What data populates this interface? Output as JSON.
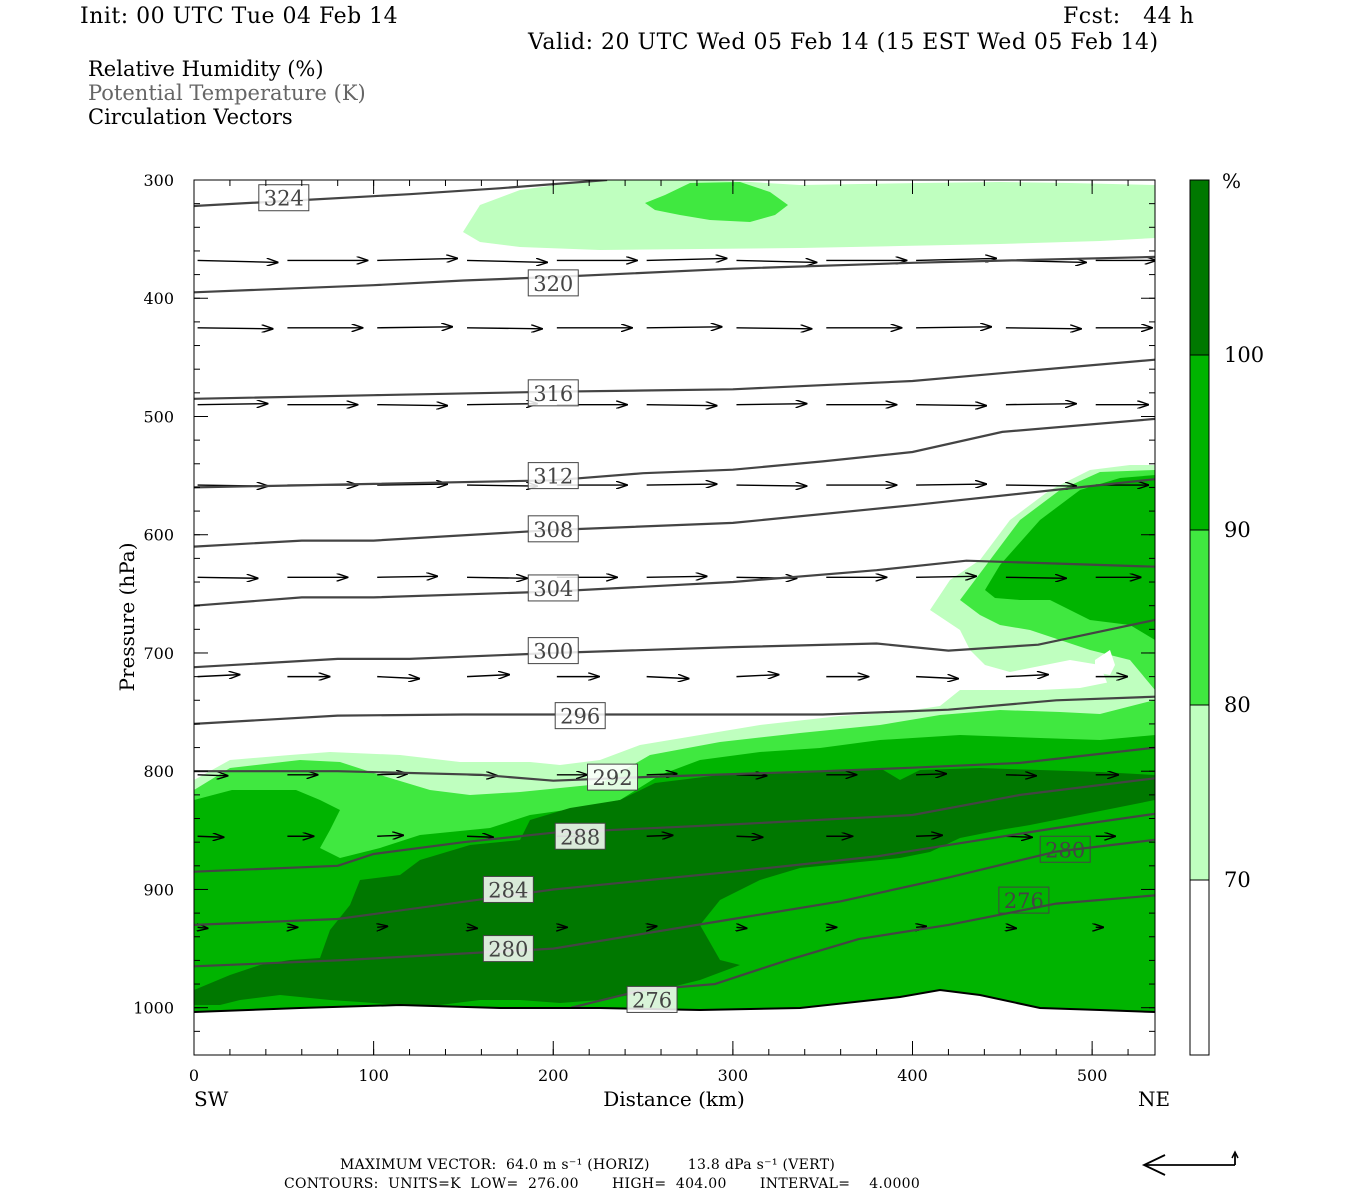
{
  "header": {
    "init": "Init: 00 UTC Tue 04 Feb 14",
    "fcst": "Fcst:   44 h",
    "valid": "Valid: 20 UTC Wed 05 Feb 14 (15 EST Wed 05 Feb 14)"
  },
  "legend_text": {
    "line1": "Relative Humidity (%)",
    "line2": "Potential Temperature (K)",
    "line3": "Circulation Vectors"
  },
  "footer": {
    "line1": "MAXIMUM VECTOR:  64.0 m s⁻¹ (HORIZ)        13.8 dPa s⁻¹ (VERT)",
    "line2": "CONTOURS:  UNITS=K  LOW=  276.00       HIGH=  404.00       INTERVAL=    4.0000"
  },
  "chart_data": {
    "type": "cross-section",
    "xlabel": "Distance (km)",
    "ylabel": "Pressure (hPa)",
    "x_left_label": "SW",
    "x_right_label": "NE",
    "xlim": [
      0,
      535
    ],
    "ylim": [
      1040,
      300
    ],
    "x_ticks": [
      0,
      100,
      200,
      300,
      400,
      500
    ],
    "y_ticks": [
      300,
      400,
      500,
      600,
      700,
      800,
      900,
      1000
    ],
    "colorbar": {
      "unit": "%",
      "levels": [
        70,
        80,
        90,
        100
      ],
      "colors": [
        "#ffffff",
        "#bfffbf",
        "#40e840",
        "#00b400",
        "#007800"
      ]
    },
    "theta_contours": [
      {
        "level": 324,
        "points": [
          [
            0,
            322
          ],
          [
            60,
            317
          ],
          [
            120,
            312
          ],
          [
            170,
            307
          ],
          [
            230,
            300
          ]
        ]
      },
      {
        "level": 320,
        "points": [
          [
            0,
            395
          ],
          [
            100,
            389
          ],
          [
            150,
            385
          ],
          [
            200,
            382
          ],
          [
            300,
            375
          ],
          [
            400,
            370
          ],
          [
            535,
            365
          ]
        ]
      },
      {
        "level": 316,
        "points": [
          [
            0,
            485
          ],
          [
            100,
            482
          ],
          [
            200,
            479
          ],
          [
            250,
            478
          ],
          [
            300,
            477
          ],
          [
            400,
            470
          ],
          [
            535,
            452
          ]
        ]
      },
      {
        "level": 312,
        "points": [
          [
            0,
            560
          ],
          [
            100,
            557
          ],
          [
            200,
            554
          ],
          [
            250,
            548
          ],
          [
            300,
            545
          ],
          [
            350,
            538
          ],
          [
            400,
            530
          ],
          [
            450,
            513
          ],
          [
            535,
            502
          ]
        ]
      },
      {
        "level": 308,
        "points": [
          [
            0,
            610
          ],
          [
            60,
            605
          ],
          [
            100,
            605
          ],
          [
            200,
            596
          ],
          [
            300,
            590
          ],
          [
            400,
            575
          ],
          [
            535,
            553
          ]
        ]
      },
      {
        "level": 304,
        "points": [
          [
            0,
            660
          ],
          [
            60,
            653
          ],
          [
            100,
            653
          ],
          [
            200,
            648
          ],
          [
            300,
            640
          ],
          [
            380,
            630
          ],
          [
            430,
            622
          ],
          [
            535,
            627
          ]
        ]
      },
      {
        "level": 300,
        "points": [
          [
            0,
            712
          ],
          [
            80,
            705
          ],
          [
            120,
            705
          ],
          [
            200,
            700
          ],
          [
            300,
            695
          ],
          [
            380,
            692
          ],
          [
            420,
            698
          ],
          [
            470,
            693
          ],
          [
            535,
            672
          ]
        ]
      },
      {
        "level": 296,
        "points": [
          [
            0,
            760
          ],
          [
            80,
            753
          ],
          [
            150,
            752
          ],
          [
            250,
            752
          ],
          [
            350,
            752
          ],
          [
            420,
            748
          ],
          [
            480,
            740
          ],
          [
            535,
            737
          ]
        ]
      },
      {
        "level": 292,
        "points": [
          [
            0,
            800
          ],
          [
            80,
            800
          ],
          [
            160,
            803
          ],
          [
            200,
            808
          ],
          [
            250,
            805
          ],
          [
            350,
            800
          ],
          [
            400,
            797
          ],
          [
            460,
            793
          ],
          [
            535,
            780
          ]
        ]
      },
      {
        "level": 288,
        "points": [
          [
            0,
            885
          ],
          [
            80,
            880
          ],
          [
            100,
            870
          ],
          [
            150,
            860
          ],
          [
            200,
            852
          ],
          [
            300,
            845
          ],
          [
            400,
            837
          ],
          [
            460,
            820
          ],
          [
            535,
            806
          ]
        ]
      },
      {
        "level": 284,
        "points": [
          [
            0,
            930
          ],
          [
            80,
            925
          ],
          [
            200,
            900
          ],
          [
            300,
            885
          ],
          [
            380,
            872
          ],
          [
            430,
            860
          ],
          [
            480,
            848
          ],
          [
            535,
            836
          ]
        ]
      },
      {
        "level": 280,
        "points": [
          [
            0,
            965
          ],
          [
            80,
            960
          ],
          [
            200,
            950
          ],
          [
            300,
            925
          ],
          [
            360,
            910
          ],
          [
            420,
            890
          ],
          [
            480,
            868
          ],
          [
            535,
            858
          ]
        ]
      },
      {
        "level": 276,
        "points": [
          [
            210,
            1000
          ],
          [
            250,
            985
          ],
          [
            290,
            980
          ],
          [
            310,
            970
          ],
          [
            330,
            960
          ],
          [
            370,
            942
          ],
          [
            420,
            930
          ],
          [
            480,
            912
          ],
          [
            535,
            905
          ]
        ]
      }
    ],
    "rh_regions": [
      {
        "level": 70,
        "points": [
          [
            150,
            345
          ],
          [
            170,
            328
          ],
          [
            200,
            318
          ],
          [
            260,
            315
          ],
          [
            330,
            312
          ],
          [
            400,
            312
          ],
          [
            440,
            310
          ],
          [
            535,
            300
          ],
          [
            535,
            345
          ],
          [
            500,
            348
          ],
          [
            400,
            352
          ],
          [
            300,
            355
          ],
          [
            200,
            352
          ]
        ]
      },
      {
        "level": 80,
        "points": [
          [
            250,
            322
          ],
          [
            270,
            318
          ],
          [
            290,
            305
          ],
          [
            310,
            300
          ],
          [
            330,
            312
          ],
          [
            320,
            325
          ],
          [
            300,
            334
          ],
          [
            270,
            330
          ]
        ]
      }
    ]
  }
}
